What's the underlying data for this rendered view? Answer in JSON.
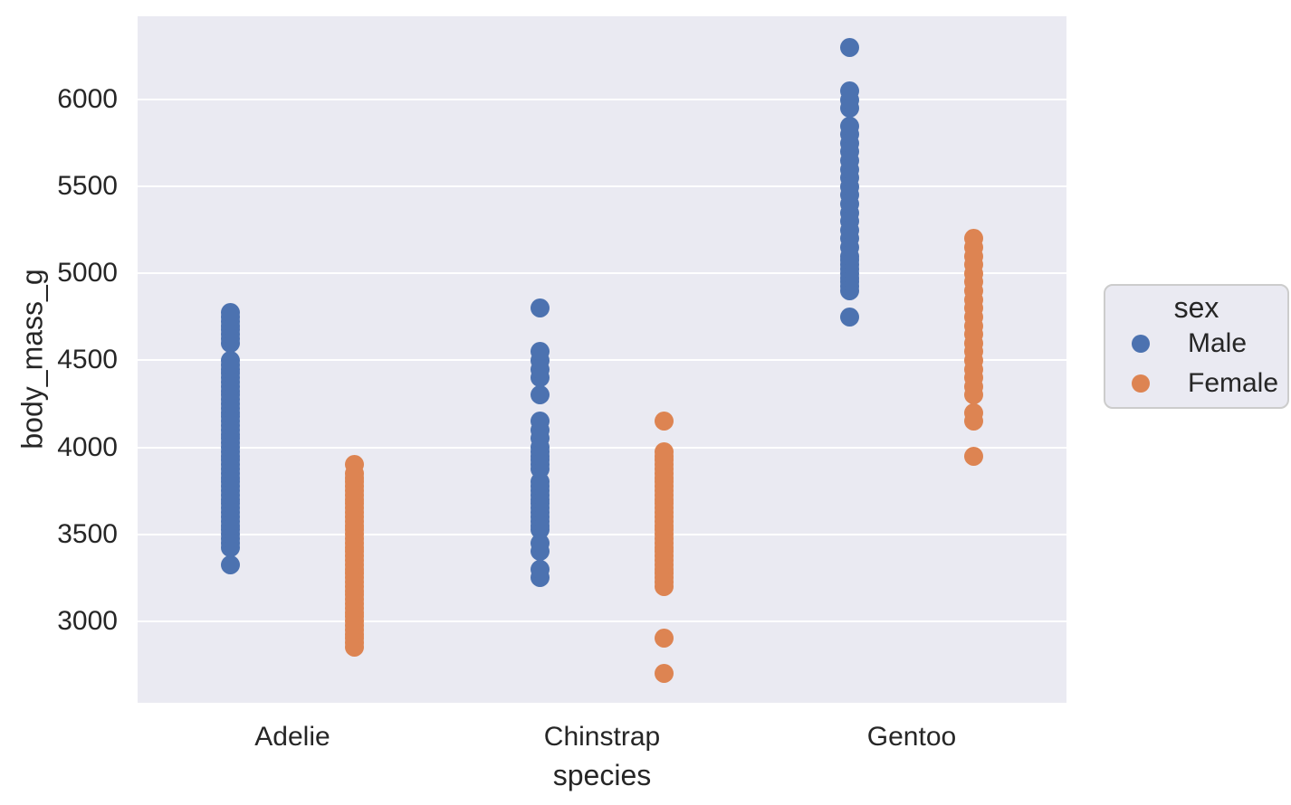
{
  "figure": {
    "background_color": "#ffffff",
    "plot_background_color": "#eaeaf2",
    "grid_color": "#ffffff",
    "text_color": "#262626",
    "legend_border_color": "#cccccc"
  },
  "chart_data": {
    "type": "scatter",
    "subtype": "strip-dodged",
    "title": "",
    "xlabel": "species",
    "ylabel": "body_mass_g",
    "categories": [
      "Adelie",
      "Chinstrap",
      "Gentoo"
    ],
    "yticks": [
      3000,
      3500,
      4000,
      4500,
      5000,
      5500,
      6000
    ],
    "ylim": [
      2530,
      6480
    ],
    "grid": true,
    "dodge": 0.2,
    "legend": {
      "title": "sex",
      "position": "outside-right",
      "entries": [
        {
          "label": "Male",
          "color": "#4c72b0"
        },
        {
          "label": "Female",
          "color": "#dd8452"
        }
      ]
    },
    "series": [
      {
        "name": "Male",
        "color": "#4c72b0",
        "points": {
          "Adelie": [
            3325,
            3425,
            3450,
            3475,
            3500,
            3525,
            3550,
            3575,
            3600,
            3625,
            3650,
            3675,
            3700,
            3725,
            3750,
            3775,
            3800,
            3825,
            3850,
            3875,
            3900,
            3925,
            3950,
            3975,
            4000,
            4025,
            4050,
            4075,
            4100,
            4125,
            4150,
            4175,
            4200,
            4225,
            4250,
            4275,
            4300,
            4325,
            4350,
            4375,
            4400,
            4425,
            4450,
            4475,
            4500,
            4600,
            4625,
            4650,
            4675,
            4700,
            4725,
            4750,
            4775
          ],
          "Chinstrap": [
            3250,
            3300,
            3400,
            3450,
            3525,
            3550,
            3575,
            3600,
            3625,
            3650,
            3675,
            3700,
            3725,
            3750,
            3775,
            3800,
            3875,
            3900,
            3925,
            3950,
            3975,
            4000,
            4050,
            4100,
            4150,
            4300,
            4400,
            4450,
            4500,
            4550,
            4800
          ],
          "Gentoo": [
            4750,
            4900,
            4925,
            4950,
            4975,
            5000,
            5025,
            5050,
            5075,
            5100,
            5150,
            5200,
            5250,
            5300,
            5350,
            5400,
            5450,
            5500,
            5550,
            5600,
            5650,
            5700,
            5750,
            5800,
            5850,
            5950,
            6000,
            6050,
            6300
          ]
        }
      },
      {
        "name": "Female",
        "color": "#dd8452",
        "points": {
          "Adelie": [
            2850,
            2875,
            2900,
            2925,
            2950,
            2975,
            3000,
            3025,
            3050,
            3075,
            3100,
            3125,
            3150,
            3175,
            3200,
            3225,
            3250,
            3275,
            3300,
            3325,
            3350,
            3375,
            3400,
            3425,
            3450,
            3475,
            3500,
            3525,
            3550,
            3575,
            3600,
            3625,
            3650,
            3675,
            3700,
            3725,
            3750,
            3775,
            3800,
            3825,
            3850,
            3900
          ],
          "Chinstrap": [
            2700,
            2900,
            3200,
            3225,
            3250,
            3275,
            3300,
            3325,
            3350,
            3375,
            3400,
            3425,
            3450,
            3475,
            3500,
            3525,
            3550,
            3575,
            3600,
            3625,
            3650,
            3675,
            3700,
            3725,
            3750,
            3775,
            3800,
            3825,
            3850,
            3875,
            3900,
            3925,
            3950,
            3975,
            4150
          ],
          "Gentoo": [
            3950,
            4150,
            4200,
            4300,
            4350,
            4400,
            4450,
            4500,
            4550,
            4600,
            4650,
            4700,
            4750,
            4800,
            4850,
            4900,
            4950,
            5000,
            5050,
            5100,
            5150,
            5200
          ]
        }
      }
    ]
  }
}
